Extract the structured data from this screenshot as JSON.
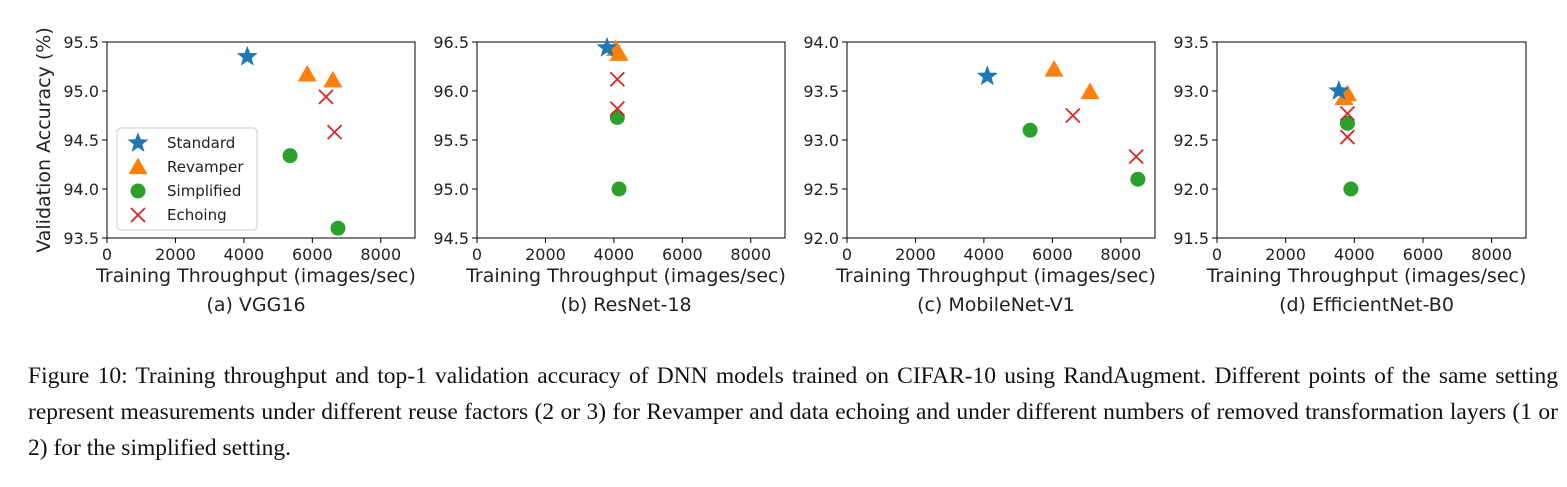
{
  "caption": "Figure 10: Training throughput and top-1 validation accuracy of DNN models trained on CIFAR-10 using RandAugment. Different points of the same setting represent measurements under different reuse factors (2 or 3) for Revamper and data echoing and under different numbers of removed transformation layers (1 or 2) for the simplified setting.",
  "legend": [
    {
      "name": "Standard",
      "color": "#1f77b4",
      "marker": "star"
    },
    {
      "name": "Revamper",
      "color": "#ff7f0e",
      "marker": "triangle"
    },
    {
      "name": "Simplified",
      "color": "#2ca02c",
      "marker": "circle"
    },
    {
      "name": "Echoing",
      "color": "#d62728",
      "marker": "x"
    }
  ],
  "chart_data": [
    {
      "type": "scatter",
      "title": "(a) VGG16",
      "xlabel": "Training Throughput (images/sec)",
      "ylabel": "Validation Accuracy (%)",
      "xlim": [
        0,
        9000
      ],
      "ylim": [
        93.5,
        95.5
      ],
      "xticks": [
        "0",
        "2000",
        "4000",
        "6000",
        "8000"
      ],
      "yticks": [
        "93.5",
        "94.0",
        "94.5",
        "95.0",
        "95.5"
      ],
      "legend_position": "lower-left",
      "series": [
        {
          "name": "Standard",
          "points": [
            [
              4100,
              95.35
            ]
          ]
        },
        {
          "name": "Revamper",
          "points": [
            [
              5850,
              95.17
            ],
            [
              6600,
              95.11
            ]
          ]
        },
        {
          "name": "Simplified",
          "points": [
            [
              5350,
              94.34
            ],
            [
              6750,
              93.6
            ]
          ]
        },
        {
          "name": "Echoing",
          "points": [
            [
              6400,
              94.94
            ],
            [
              6650,
              94.58
            ]
          ]
        }
      ]
    },
    {
      "type": "scatter",
      "title": "(b) ResNet-18",
      "xlabel": "Training Throughput (images/sec)",
      "ylabel": "",
      "xlim": [
        0,
        9000
      ],
      "ylim": [
        94.5,
        96.5
      ],
      "xticks": [
        "0",
        "2000",
        "4000",
        "6000",
        "8000"
      ],
      "yticks": [
        "94.5",
        "95.0",
        "95.5",
        "96.0",
        "96.5"
      ],
      "series": [
        {
          "name": "Standard",
          "points": [
            [
              3800,
              96.44
            ]
          ]
        },
        {
          "name": "Revamper",
          "points": [
            [
              4050,
              96.43
            ],
            [
              4150,
              96.38
            ]
          ]
        },
        {
          "name": "Simplified",
          "points": [
            [
              4100,
              95.73
            ],
            [
              4150,
              95.0
            ]
          ]
        },
        {
          "name": "Echoing",
          "points": [
            [
              4100,
              96.12
            ],
            [
              4100,
              95.82
            ]
          ]
        }
      ]
    },
    {
      "type": "scatter",
      "title": "(c) MobileNet-V1",
      "xlabel": "Training Throughput (images/sec)",
      "ylabel": "",
      "xlim": [
        0,
        9000
      ],
      "ylim": [
        92.0,
        94.0
      ],
      "xticks": [
        "0",
        "2000",
        "4000",
        "6000",
        "8000"
      ],
      "yticks": [
        "92.0",
        "92.5",
        "93.0",
        "93.5",
        "94.0"
      ],
      "series": [
        {
          "name": "Standard",
          "points": [
            [
              4100,
              93.65
            ]
          ]
        },
        {
          "name": "Revamper",
          "points": [
            [
              6050,
              93.72
            ],
            [
              7100,
              93.49
            ]
          ]
        },
        {
          "name": "Simplified",
          "points": [
            [
              5350,
              93.1
            ],
            [
              8500,
              92.6
            ]
          ]
        },
        {
          "name": "Echoing",
          "points": [
            [
              6600,
              93.25
            ],
            [
              8450,
              92.83
            ]
          ]
        }
      ]
    },
    {
      "type": "scatter",
      "title": "(d) EfficientNet-B0",
      "xlabel": "Training Throughput (images/sec)",
      "ylabel": "",
      "xlim": [
        0,
        9000
      ],
      "ylim": [
        91.5,
        93.5
      ],
      "xticks": [
        "0",
        "2000",
        "4000",
        "6000",
        "8000"
      ],
      "yticks": [
        "91.5",
        "92.0",
        "92.5",
        "93.0",
        "93.5"
      ],
      "series": [
        {
          "name": "Standard",
          "points": [
            [
              3550,
              93.0
            ]
          ]
        },
        {
          "name": "Revamper",
          "points": [
            [
              3700,
              92.93
            ],
            [
              3800,
              92.97
            ]
          ]
        },
        {
          "name": "Simplified",
          "points": [
            [
              3800,
              92.67
            ],
            [
              3900,
              92.0
            ]
          ]
        },
        {
          "name": "Echoing",
          "points": [
            [
              3800,
              92.77
            ],
            [
              3800,
              92.53
            ]
          ]
        }
      ]
    }
  ]
}
